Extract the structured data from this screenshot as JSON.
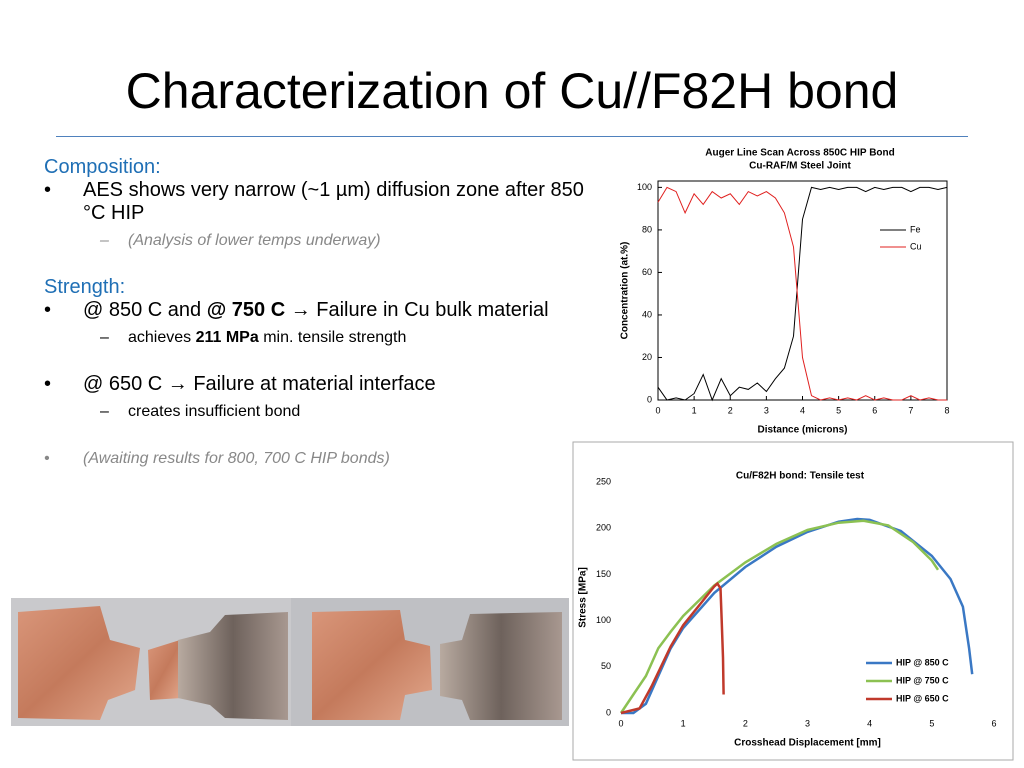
{
  "slide": {
    "title": "Characterization of Cu//F82H bond",
    "composition": {
      "heading": "Composition:",
      "bullet": "AES shows very narrow (~1 µm) diffusion zone after 850 °C HIP",
      "sub": "(Analysis of lower temps underway)"
    },
    "strength": {
      "heading": "Strength:",
      "bullet1": [
        "@ 850 C and ",
        "@ 750 C",
        " → Failure in Cu bulk material"
      ],
      "sub1": [
        "achieves ",
        "211 MPa",
        " min. tensile strength"
      ],
      "bullet2": "@ 650 C → Failure at material interface",
      "sub2": "creates insufficient bond",
      "note": "(Awaiting results for 800, 700 C HIP bonds)"
    }
  },
  "chart_data": [
    {
      "type": "line",
      "title": "Auger Line Scan  Across 850C HIP Bond",
      "subtitle": "Cu-RAF/M Steel Joint",
      "x_label": "Distance (microns)",
      "y_label": "Concentration (at.%)",
      "xlim": [
        0,
        8
      ],
      "xticks": [
        0,
        1,
        2,
        3,
        4,
        5,
        6,
        7,
        8
      ],
      "ylim": [
        0,
        103
      ],
      "yticks": [
        0,
        20,
        40,
        60,
        80,
        100
      ],
      "legend": "upper right",
      "x": [
        0,
        0.25,
        0.5,
        0.75,
        1,
        1.25,
        1.5,
        1.75,
        2,
        2.25,
        2.5,
        2.75,
        3,
        3.25,
        3.5,
        3.75,
        4,
        4.25,
        4.5,
        4.75,
        5,
        5.25,
        5.5,
        5.75,
        6,
        6.25,
        6.5,
        6.75,
        7,
        7.25,
        7.5,
        7.75,
        8
      ],
      "series": [
        {
          "name": "Fe",
          "color": "#000000",
          "values": [
            6,
            0,
            1,
            0,
            3,
            12,
            0,
            10,
            2,
            6,
            5,
            8,
            4,
            10,
            15,
            30,
            85,
            100,
            99,
            100,
            99,
            100,
            100,
            98,
            100,
            99,
            100,
            100,
            98,
            100,
            100,
            99,
            100
          ]
        },
        {
          "name": "Cu",
          "color": "#e0201f",
          "values": [
            93,
            100,
            98,
            88,
            97,
            92,
            98,
            95,
            97,
            92,
            98,
            96,
            98,
            95,
            88,
            72,
            20,
            2,
            0,
            1,
            0,
            1,
            0,
            2,
            0,
            1,
            0,
            0,
            2,
            0,
            1,
            0,
            0
          ]
        }
      ]
    },
    {
      "type": "line",
      "title": "Cu/F82H bond:  Tensile test",
      "x_label": "Crosshead Displacement [mm]",
      "y_label": "Stress [MPa]",
      "xlim": [
        0,
        6
      ],
      "xticks": [
        0,
        1,
        2,
        3,
        4,
        5,
        6
      ],
      "ylim": [
        0,
        250
      ],
      "yticks": [
        0,
        50,
        100,
        150,
        200,
        250
      ],
      "legend": "lower right",
      "series": [
        {
          "name": "HIP @ 850 C",
          "color": "#3a78c4",
          "x": [
            0,
            0.2,
            0.4,
            0.6,
            0.8,
            1,
            1.5,
            2,
            2.5,
            3,
            3.5,
            3.8,
            4,
            4.5,
            5,
            5.3,
            5.5,
            5.6,
            5.65
          ],
          "values": [
            0,
            0,
            10,
            40,
            70,
            92,
            130,
            158,
            180,
            196,
            207,
            210,
            209,
            197,
            170,
            145,
            115,
            70,
            42
          ]
        },
        {
          "name": "HIP @ 750 C",
          "color": "#8cc152",
          "x": [
            0,
            0.2,
            0.4,
            0.6,
            0.8,
            1,
            1.5,
            2,
            2.5,
            3,
            3.5,
            3.9,
            4.3,
            4.7,
            5,
            5.1
          ],
          "values": [
            0,
            20,
            40,
            70,
            88,
            105,
            138,
            163,
            183,
            198,
            206,
            208,
            203,
            185,
            165,
            155
          ]
        },
        {
          "name": "HIP @ 650 C",
          "color": "#c0392b",
          "x": [
            0,
            0.3,
            0.5,
            0.8,
            1,
            1.3,
            1.5,
            1.55,
            1.6,
            1.62,
            1.64,
            1.65
          ],
          "values": [
            0,
            5,
            30,
            72,
            95,
            120,
            137,
            140,
            135,
            100,
            60,
            20
          ]
        }
      ]
    }
  ]
}
